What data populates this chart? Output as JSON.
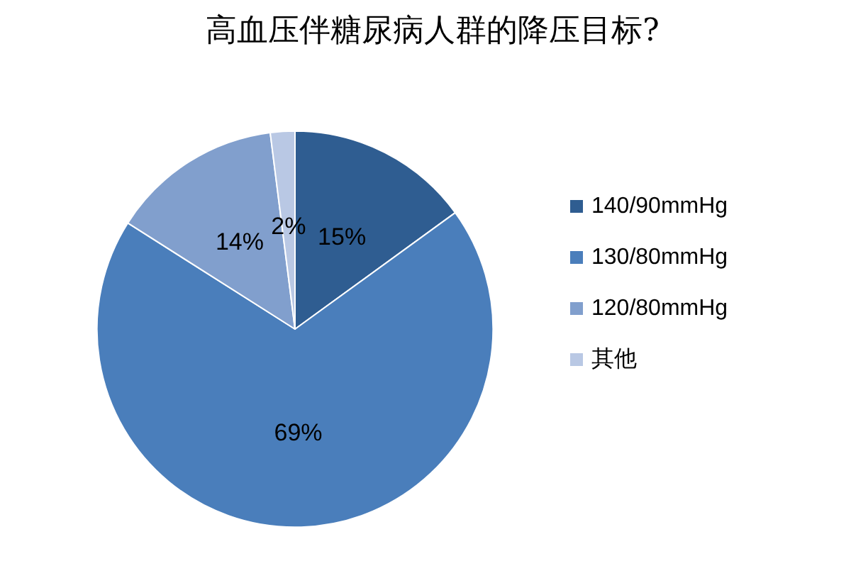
{
  "chart_data": {
    "type": "pie",
    "title": "高血压伴糖尿病人群的降压目标?",
    "categories": [
      "140/90mmHg",
      "130/80mmHg",
      "120/80mmHg",
      "其他"
    ],
    "values": [
      15,
      69,
      14,
      2
    ],
    "colors": [
      "#2f5d91",
      "#4a7ebb",
      "#819fcd",
      "#b9c8e4"
    ],
    "value_labels": [
      "15%",
      "69%",
      "14%",
      "2%"
    ],
    "legend": "right"
  }
}
